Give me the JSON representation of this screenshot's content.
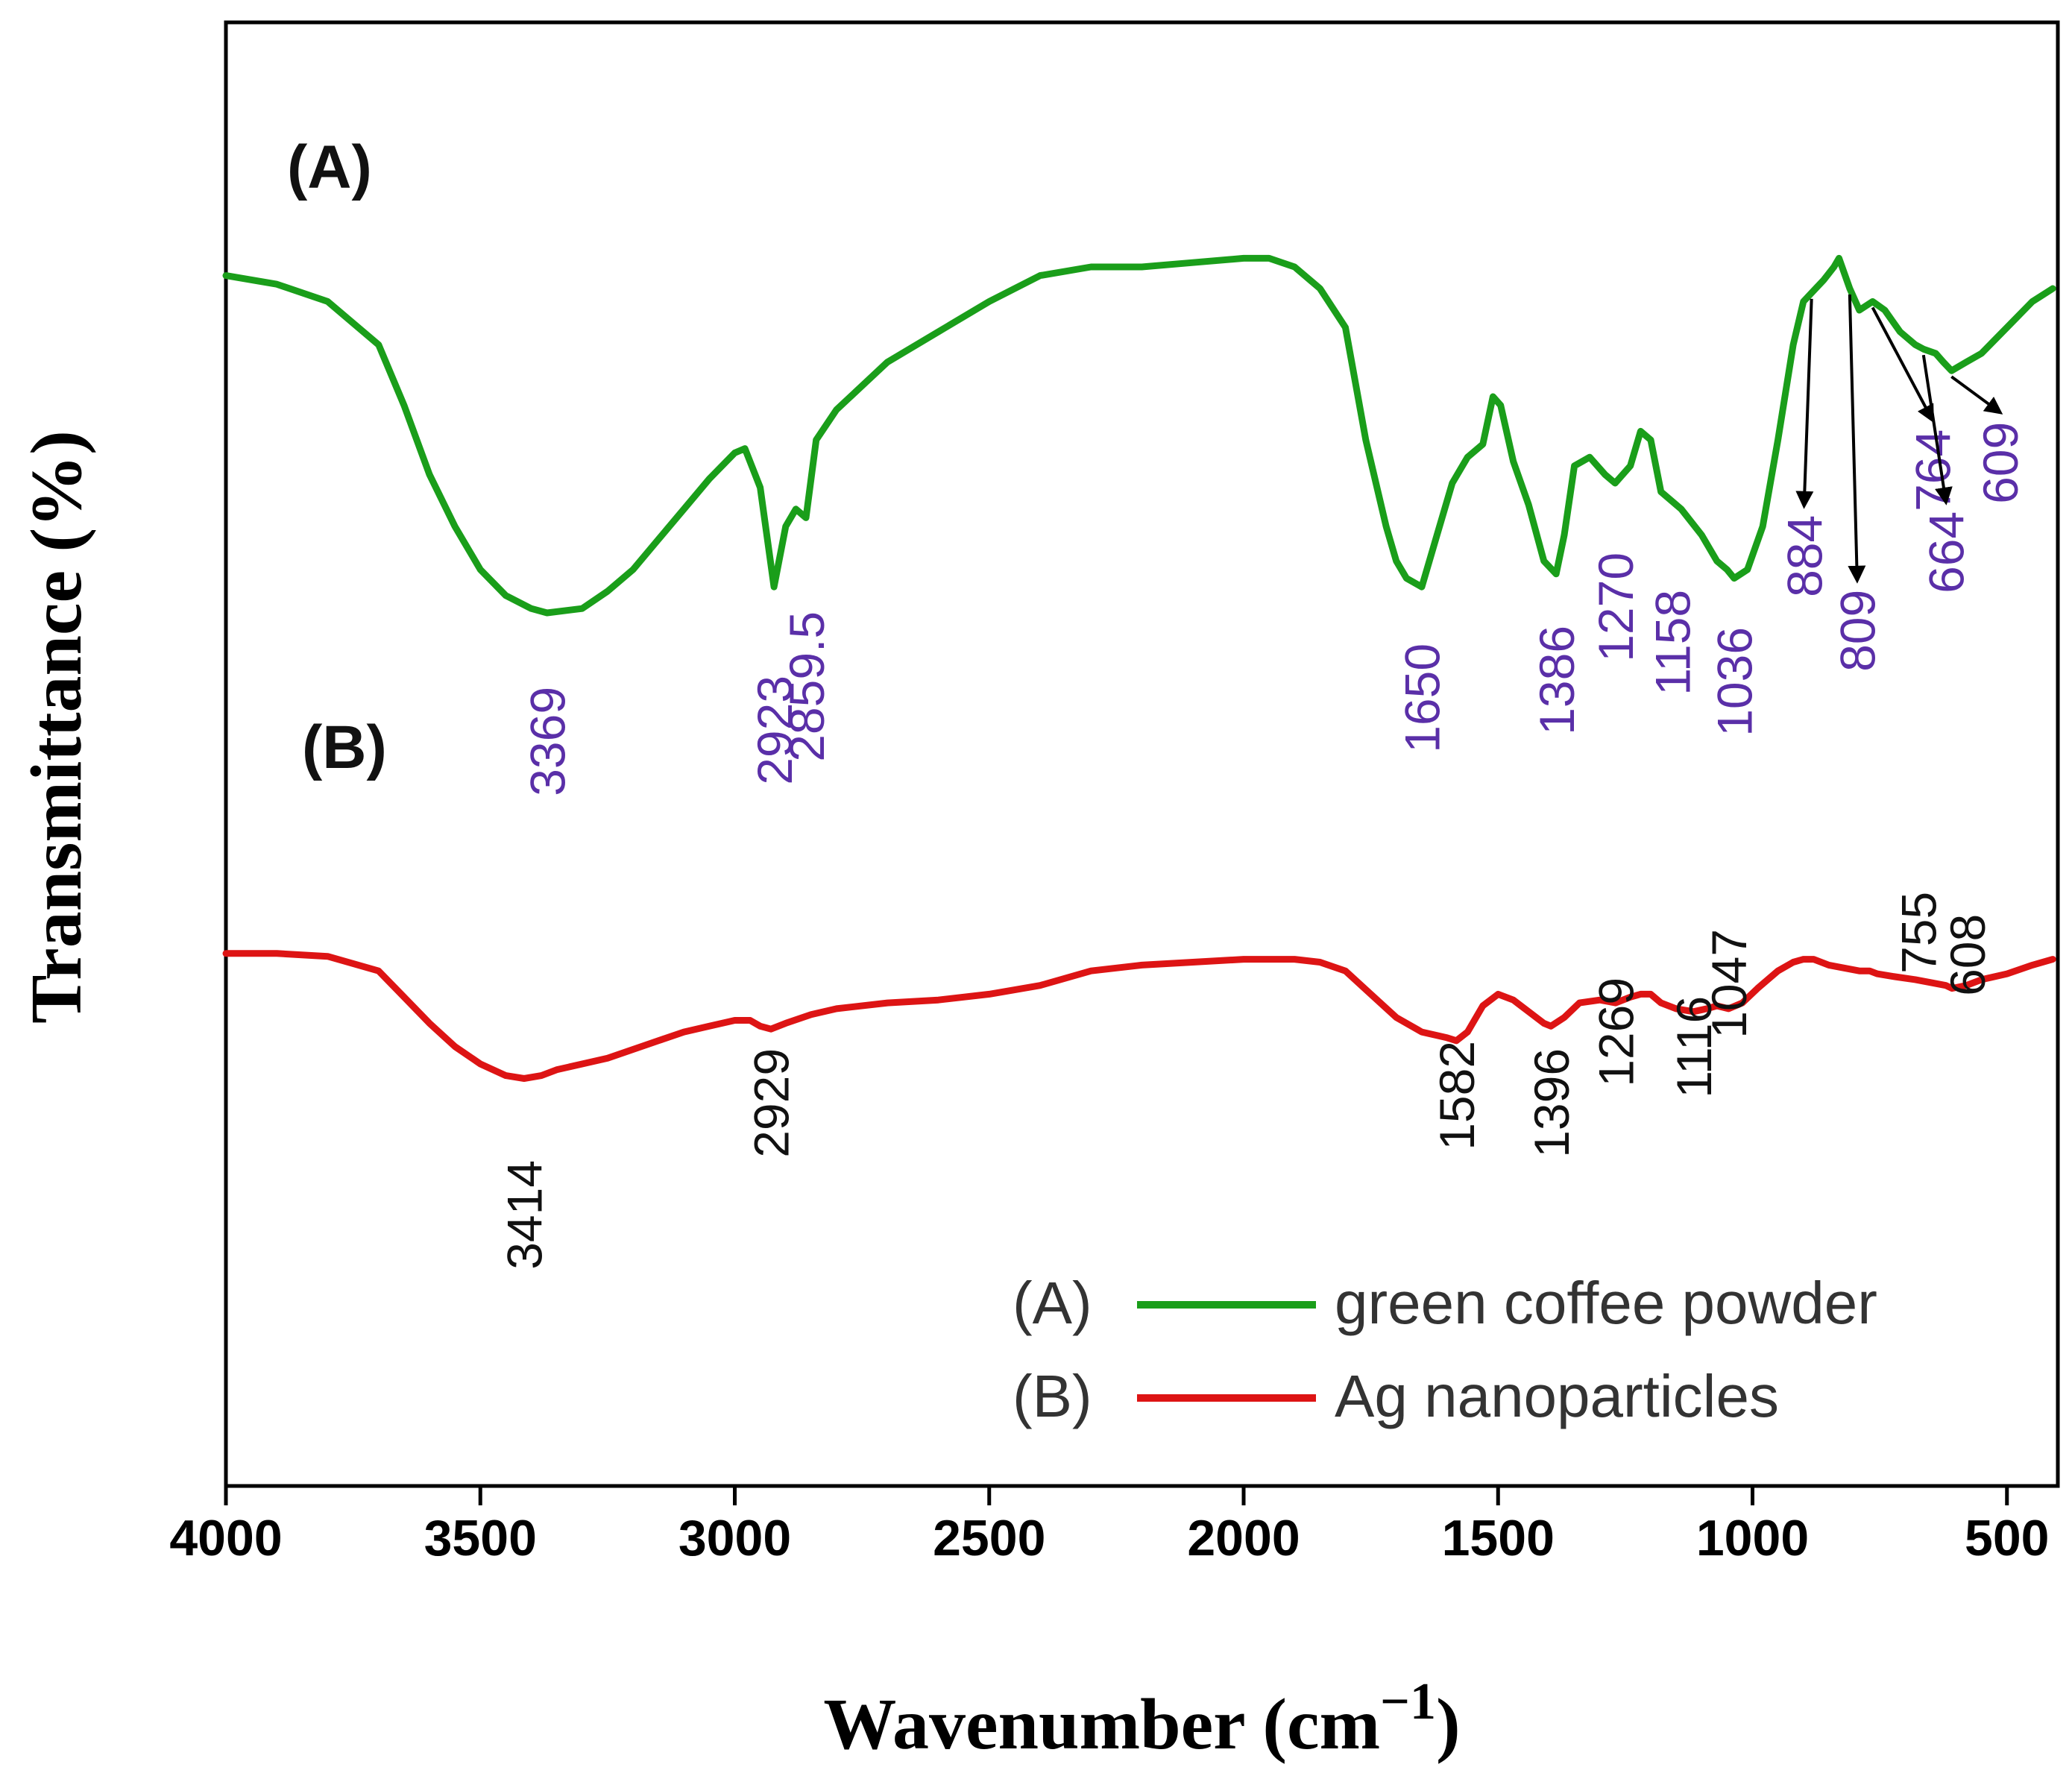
{
  "chart_data": {
    "type": "line",
    "title": "",
    "xlabel": "Wavenumber (cm",
    "xlabel_exp": "−1",
    "xlabel_close": ")",
    "ylabel": "Transmittance (%)",
    "xlim": [
      4000,
      400
    ],
    "x_reversed": true,
    "xticks": [
      4000,
      3500,
      3000,
      2500,
      2000,
      1500,
      1000,
      500
    ],
    "xtick_labels": [
      "4000",
      "3500",
      "3000",
      "2500",
      "2000",
      "1500",
      "1000",
      "500"
    ],
    "yticks": "none",
    "grid": false,
    "legend_position": "bottom-right",
    "colors": {
      "series_a": "#1a9e1a",
      "series_b": "#dd1414",
      "annot_a": "#5a2fa8",
      "annot_b": "#111111",
      "axis": "#000000"
    },
    "panel_labels": [
      "(A)",
      "(B)"
    ],
    "legend": [
      {
        "prefix": "(A)",
        "label": "green coffee powder"
      },
      {
        "prefix": "(B)",
        "label": "Ag nanoparticles"
      }
    ],
    "series": [
      {
        "name": "green coffee powder",
        "id": "A",
        "units": "relative transmittance (a.u.)",
        "points": [
          [
            4000,
            88
          ],
          [
            3900,
            86
          ],
          [
            3800,
            82
          ],
          [
            3700,
            72
          ],
          [
            3650,
            58
          ],
          [
            3600,
            42
          ],
          [
            3550,
            30
          ],
          [
            3500,
            20
          ],
          [
            3450,
            14
          ],
          [
            3400,
            11
          ],
          [
            3369,
            10
          ],
          [
            3300,
            11
          ],
          [
            3250,
            15
          ],
          [
            3200,
            20
          ],
          [
            3150,
            27
          ],
          [
            3100,
            34
          ],
          [
            3050,
            41
          ],
          [
            3000,
            47
          ],
          [
            2980,
            48
          ],
          [
            2950,
            39
          ],
          [
            2923,
            16
          ],
          [
            2900,
            30
          ],
          [
            2880,
            34
          ],
          [
            2860,
            32
          ],
          [
            2840,
            50
          ],
          [
            2800,
            57
          ],
          [
            2700,
            68
          ],
          [
            2600,
            75
          ],
          [
            2500,
            82
          ],
          [
            2400,
            88
          ],
          [
            2300,
            90
          ],
          [
            2200,
            90
          ],
          [
            2100,
            91
          ],
          [
            2000,
            92
          ],
          [
            1950,
            92
          ],
          [
            1900,
            90
          ],
          [
            1850,
            85
          ],
          [
            1800,
            76
          ],
          [
            1760,
            50
          ],
          [
            1720,
            30
          ],
          [
            1700,
            22
          ],
          [
            1680,
            18
          ],
          [
            1650,
            16
          ],
          [
            1620,
            28
          ],
          [
            1590,
            40
          ],
          [
            1560,
            46
          ],
          [
            1530,
            49
          ],
          [
            1510,
            60
          ],
          [
            1495,
            58
          ],
          [
            1470,
            45
          ],
          [
            1440,
            35
          ],
          [
            1410,
            22
          ],
          [
            1386,
            19
          ],
          [
            1370,
            28
          ],
          [
            1350,
            44
          ],
          [
            1320,
            46
          ],
          [
            1290,
            42
          ],
          [
            1270,
            40
          ],
          [
            1240,
            44
          ],
          [
            1220,
            52
          ],
          [
            1200,
            50
          ],
          [
            1180,
            38
          ],
          [
            1160,
            36
          ],
          [
            1140,
            34
          ],
          [
            1100,
            28
          ],
          [
            1070,
            22
          ],
          [
            1050,
            20
          ],
          [
            1036,
            18
          ],
          [
            1010,
            20
          ],
          [
            980,
            30
          ],
          [
            950,
            50
          ],
          [
            920,
            72
          ],
          [
            900,
            82
          ],
          [
            884,
            84
          ],
          [
            860,
            87
          ],
          [
            840,
            90
          ],
          [
            830,
            92
          ],
          [
            809,
            85
          ],
          [
            790,
            80
          ],
          [
            764,
            82
          ],
          [
            740,
            80
          ],
          [
            710,
            75
          ],
          [
            680,
            72
          ],
          [
            664,
            71
          ],
          [
            640,
            70
          ],
          [
            625,
            68
          ],
          [
            609,
            66
          ],
          [
            580,
            68
          ],
          [
            550,
            70
          ],
          [
            500,
            76
          ],
          [
            450,
            82
          ],
          [
            410,
            85
          ]
        ]
      },
      {
        "name": "Ag nanoparticles",
        "id": "B",
        "units": "relative transmittance (a.u.)",
        "points": [
          [
            4000,
            58
          ],
          [
            3900,
            58
          ],
          [
            3800,
            57
          ],
          [
            3700,
            52
          ],
          [
            3650,
            43
          ],
          [
            3600,
            34
          ],
          [
            3550,
            26
          ],
          [
            3500,
            20
          ],
          [
            3450,
            16
          ],
          [
            3414,
            15
          ],
          [
            3380,
            16
          ],
          [
            3350,
            18
          ],
          [
            3300,
            20
          ],
          [
            3250,
            22
          ],
          [
            3200,
            25
          ],
          [
            3150,
            28
          ],
          [
            3100,
            31
          ],
          [
            3050,
            33
          ],
          [
            3000,
            35
          ],
          [
            2970,
            35
          ],
          [
            2950,
            33
          ],
          [
            2929,
            32
          ],
          [
            2900,
            34
          ],
          [
            2850,
            37
          ],
          [
            2800,
            39
          ],
          [
            2700,
            41
          ],
          [
            2600,
            42
          ],
          [
            2500,
            44
          ],
          [
            2400,
            47
          ],
          [
            2300,
            52
          ],
          [
            2200,
            54
          ],
          [
            2100,
            55
          ],
          [
            2000,
            56
          ],
          [
            1950,
            56
          ],
          [
            1900,
            56
          ],
          [
            1850,
            55
          ],
          [
            1800,
            52
          ],
          [
            1750,
            44
          ],
          [
            1700,
            36
          ],
          [
            1650,
            31
          ],
          [
            1600,
            29
          ],
          [
            1582,
            28
          ],
          [
            1560,
            31
          ],
          [
            1530,
            40
          ],
          [
            1500,
            44
          ],
          [
            1470,
            42
          ],
          [
            1440,
            38
          ],
          [
            1410,
            34
          ],
          [
            1396,
            33
          ],
          [
            1370,
            36
          ],
          [
            1340,
            41
          ],
          [
            1300,
            42
          ],
          [
            1269,
            41
          ],
          [
            1240,
            43
          ],
          [
            1220,
            44
          ],
          [
            1200,
            44
          ],
          [
            1180,
            41
          ],
          [
            1150,
            39
          ],
          [
            1116,
            38
          ],
          [
            1090,
            39
          ],
          [
            1070,
            40
          ],
          [
            1047,
            39
          ],
          [
            1020,
            41
          ],
          [
            990,
            46
          ],
          [
            950,
            52
          ],
          [
            920,
            55
          ],
          [
            900,
            56
          ],
          [
            880,
            56
          ],
          [
            850,
            54
          ],
          [
            820,
            53
          ],
          [
            790,
            52
          ],
          [
            770,
            52
          ],
          [
            755,
            51
          ],
          [
            720,
            50
          ],
          [
            680,
            49
          ],
          [
            650,
            48
          ],
          [
            620,
            47
          ],
          [
            608,
            46
          ],
          [
            580,
            47
          ],
          [
            550,
            49
          ],
          [
            500,
            51
          ],
          [
            450,
            54
          ],
          [
            410,
            56
          ]
        ]
      }
    ],
    "annotations": [
      {
        "series": "A",
        "x": 3369,
        "label": "3369",
        "arrow": false
      },
      {
        "series": "A",
        "x": 2923,
        "label": "2923",
        "arrow": false
      },
      {
        "series": "A",
        "x": 2859.5,
        "label": "2859.5",
        "arrow": false
      },
      {
        "series": "A",
        "x": 1650,
        "label": "1650",
        "arrow": false
      },
      {
        "series": "A",
        "x": 1386,
        "label": "1386",
        "arrow": false
      },
      {
        "series": "A",
        "x": 1270,
        "label": "1270",
        "arrow": false
      },
      {
        "series": "A",
        "x": 1158,
        "label": "1158",
        "arrow": false
      },
      {
        "series": "A",
        "x": 1036,
        "label": "1036",
        "arrow": false
      },
      {
        "series": "A",
        "x": 884,
        "label": "884",
        "arrow": true
      },
      {
        "series": "A",
        "x": 809,
        "label": "809",
        "arrow": true
      },
      {
        "series": "A",
        "x": 764,
        "label": "764",
        "arrow": true
      },
      {
        "series": "A",
        "x": 664,
        "label": "664",
        "arrow": true
      },
      {
        "series": "A",
        "x": 609,
        "label": "609",
        "arrow": true
      },
      {
        "series": "B",
        "x": 3414,
        "label": "3414",
        "arrow": false
      },
      {
        "series": "B",
        "x": 2929,
        "label": "2929",
        "arrow": false
      },
      {
        "series": "B",
        "x": 1582,
        "label": "1582",
        "arrow": false
      },
      {
        "series": "B",
        "x": 1396,
        "label": "1396",
        "arrow": false
      },
      {
        "series": "B",
        "x": 1269,
        "label": "1269",
        "arrow": false
      },
      {
        "series": "B",
        "x": 1116,
        "label": "1116",
        "arrow": false
      },
      {
        "series": "B",
        "x": 1047,
        "label": "1047",
        "arrow": false
      },
      {
        "series": "B",
        "x": 755,
        "label": "755",
        "arrow": false
      },
      {
        "series": "B",
        "x": 608,
        "label": "608",
        "arrow": false
      }
    ]
  }
}
